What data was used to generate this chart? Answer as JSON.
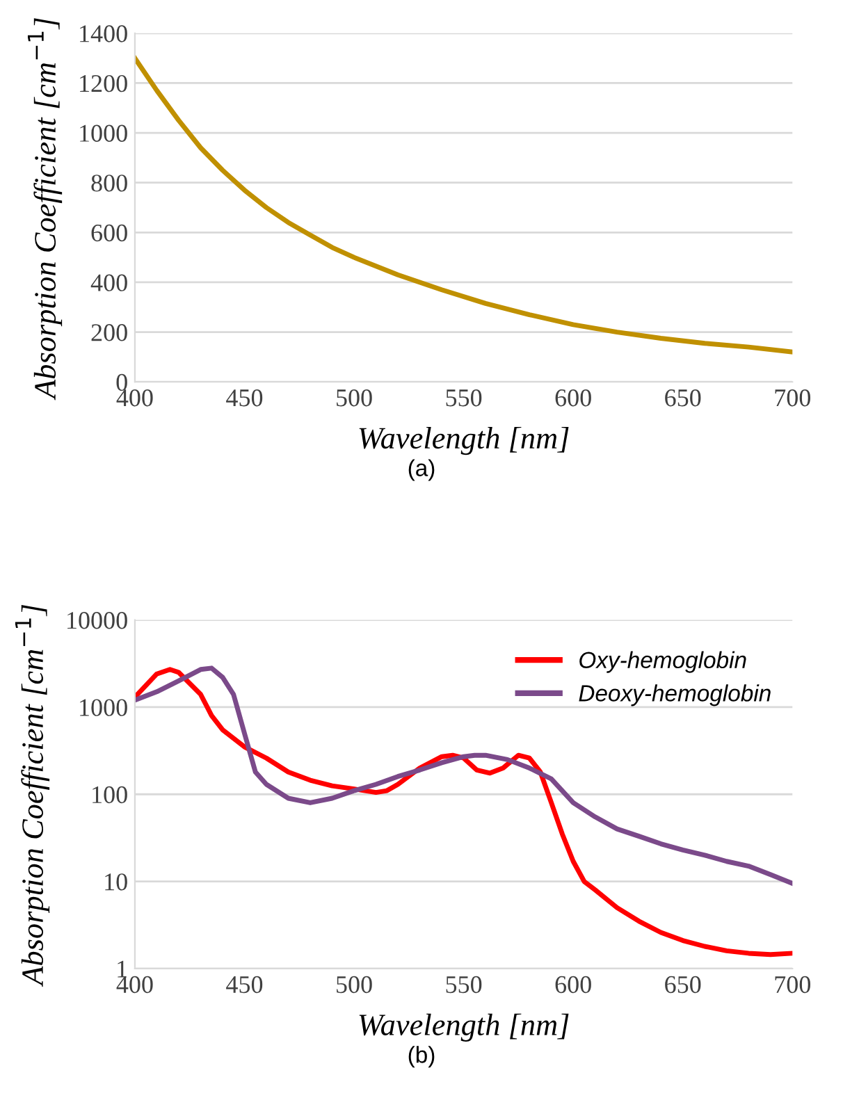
{
  "chart_data": [
    {
      "type": "line",
      "xlabel": "Wavelength [nm]",
      "ylabel": "Absorption Coefficient [cm$^{−1}$]",
      "annotations": [
        "(a)"
      ],
      "xlim": [
        400,
        700
      ],
      "xticks": [
        400,
        450,
        500,
        550,
        600,
        650,
        700
      ],
      "ylim": [
        0,
        1400
      ],
      "yticks": [
        0,
        200,
        400,
        600,
        800,
        1000,
        1200,
        1400
      ],
      "grid": "y",
      "legend": false,
      "marker": "none",
      "line_style": "solid",
      "series": [
        {
          "color": "#c09000",
          "x": [
            400,
            410,
            420,
            430,
            440,
            450,
            460,
            470,
            480,
            490,
            500,
            520,
            540,
            560,
            580,
            600,
            620,
            640,
            660,
            680,
            700
          ],
          "values": [
            1300,
            1170,
            1050,
            940,
            850,
            770,
            700,
            640,
            590,
            540,
            500,
            430,
            370,
            315,
            270,
            230,
            200,
            175,
            155,
            140,
            120
          ]
        }
      ]
    },
    {
      "type": "line",
      "xlabel": "Wavelength [nm]",
      "ylabel": "Absorption Coefficient [cm$^{−1}$]",
      "annotations": [
        "(b)"
      ],
      "log": "y",
      "xlim": [
        400,
        700
      ],
      "xticks": [
        400,
        450,
        500,
        550,
        600,
        650,
        700
      ],
      "ylim": [
        1,
        10000
      ],
      "yticks": [
        1,
        10,
        100,
        1000,
        10000
      ],
      "grid": "y",
      "legend": "top right",
      "marker": "none",
      "line_style": "solid",
      "series": [
        {
          "name": "Oxy-hemoglobin",
          "color": "#ff0000",
          "x": [
            400,
            410,
            416,
            420,
            430,
            435,
            440,
            450,
            460,
            470,
            480,
            490,
            500,
            510,
            515,
            520,
            530,
            540,
            545,
            550,
            556,
            562,
            568,
            575,
            580,
            585,
            590,
            595,
            600,
            605,
            610,
            620,
            630,
            640,
            650,
            660,
            670,
            680,
            690,
            700
          ],
          "values": [
            1300,
            2400,
            2700,
            2500,
            1400,
            800,
            550,
            350,
            260,
            180,
            145,
            125,
            115,
            105,
            110,
            130,
            200,
            270,
            280,
            260,
            190,
            175,
            200,
            280,
            260,
            180,
            80,
            35,
            17,
            10,
            8,
            5,
            3.5,
            2.6,
            2.1,
            1.8,
            1.6,
            1.5,
            1.45,
            1.5
          ]
        },
        {
          "name": "Deoxy-hemoglobin",
          "color": "#7b4a8a",
          "x": [
            400,
            410,
            420,
            430,
            435,
            440,
            445,
            450,
            455,
            460,
            470,
            480,
            490,
            500,
            510,
            520,
            530,
            540,
            550,
            555,
            560,
            570,
            580,
            590,
            600,
            610,
            620,
            630,
            640,
            650,
            660,
            670,
            680,
            690,
            700
          ],
          "values": [
            1200,
            1500,
            2000,
            2700,
            2800,
            2200,
            1400,
            500,
            180,
            130,
            90,
            80,
            90,
            110,
            130,
            160,
            190,
            230,
            270,
            280,
            280,
            250,
            200,
            150,
            80,
            55,
            40,
            33,
            27,
            23,
            20,
            17,
            15,
            12,
            9.5
          ]
        }
      ]
    }
  ]
}
